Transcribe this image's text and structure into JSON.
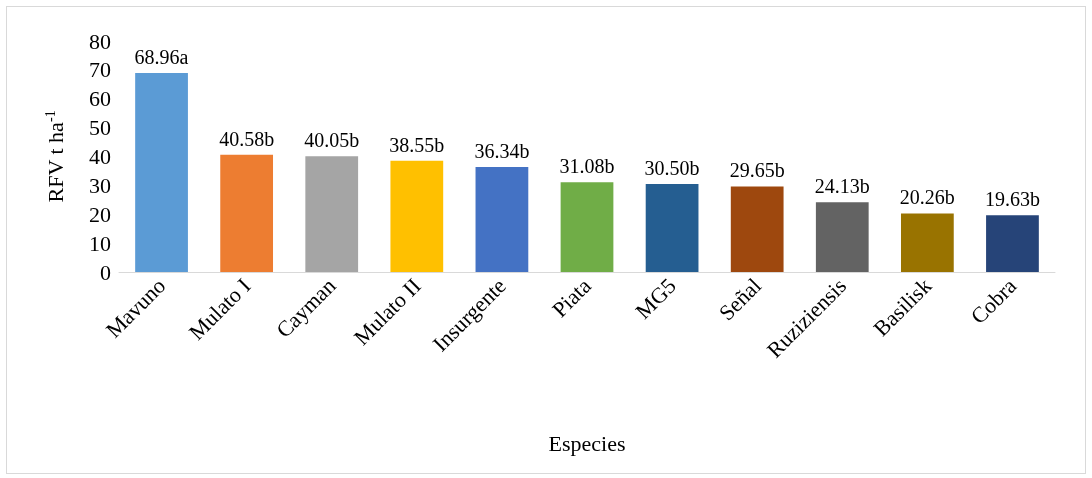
{
  "chart_data": {
    "type": "bar",
    "xlabel": "Especies",
    "ylabel": "RFV t ha$^{-1}$",
    "categories": [
      "Mavuno",
      "Mulato I",
      "Cayman",
      "Mulato II",
      "Insurgente",
      "Piata",
      "MG5",
      "Señal",
      "Ruziziensis",
      "Basilisk",
      "Cobra"
    ],
    "values": [
      68.96,
      40.58,
      40.05,
      38.55,
      36.34,
      31.08,
      30.5,
      29.65,
      24.13,
      20.26,
      19.63
    ],
    "value_labels": [
      "68.96a",
      "40.58b",
      "40.05b",
      "38.55b",
      "36.34b",
      "31.08b",
      "30.50b",
      "29.65b",
      "24.13b",
      "20.26b",
      "19.63b"
    ],
    "colors": [
      "#5b9bd5",
      "#ed7d31",
      "#a5a5a5",
      "#ffc000",
      "#4472c4",
      "#70ad47",
      "#255e91",
      "#9e480e",
      "#636363",
      "#997300",
      "#264478"
    ],
    "ylim": [
      0,
      80
    ],
    "yticks": [
      0,
      10,
      20,
      30,
      40,
      50,
      60,
      70,
      80
    ],
    "grid": false
  }
}
